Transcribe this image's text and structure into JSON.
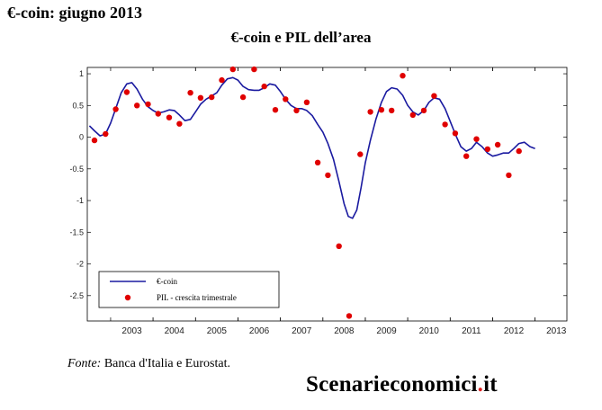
{
  "header": {
    "title": "€-coin: giugno 2013"
  },
  "chart_data": {
    "type": "line",
    "title": "€-coin e PIL dell’area",
    "xlabel": "",
    "ylabel": "",
    "ylim": [
      -2.9,
      1.1
    ],
    "xlim": [
      2002.45,
      2013.75
    ],
    "grid": false,
    "legend": {
      "placement": "bottom-left"
    },
    "x_ticks": [
      "2003",
      "2004",
      "2005",
      "2006",
      "2007",
      "2008",
      "2009",
      "2010",
      "2011",
      "2012",
      "2013"
    ],
    "y_ticks": [
      "1",
      "0.5",
      "0",
      "-0.5",
      "-1",
      "-1.5",
      "-2",
      "-2.5"
    ],
    "series": [
      {
        "name": "€-coin",
        "style": "line",
        "color": "#1a1aa0",
        "points": [
          [
            2002.5,
            0.18
          ],
          [
            2002.62,
            0.1
          ],
          [
            2002.75,
            0.02
          ],
          [
            2002.88,
            0.05
          ],
          [
            2003.0,
            0.22
          ],
          [
            2003.12,
            0.45
          ],
          [
            2003.25,
            0.7
          ],
          [
            2003.38,
            0.84
          ],
          [
            2003.5,
            0.86
          ],
          [
            2003.62,
            0.76
          ],
          [
            2003.75,
            0.6
          ],
          [
            2003.88,
            0.48
          ],
          [
            2004.0,
            0.42
          ],
          [
            2004.12,
            0.38
          ],
          [
            2004.25,
            0.4
          ],
          [
            2004.38,
            0.43
          ],
          [
            2004.5,
            0.42
          ],
          [
            2004.62,
            0.35
          ],
          [
            2004.75,
            0.26
          ],
          [
            2004.88,
            0.28
          ],
          [
            2005.0,
            0.4
          ],
          [
            2005.12,
            0.52
          ],
          [
            2005.25,
            0.6
          ],
          [
            2005.38,
            0.65
          ],
          [
            2005.5,
            0.7
          ],
          [
            2005.62,
            0.82
          ],
          [
            2005.75,
            0.92
          ],
          [
            2005.88,
            0.94
          ],
          [
            2006.0,
            0.9
          ],
          [
            2006.12,
            0.8
          ],
          [
            2006.25,
            0.75
          ],
          [
            2006.38,
            0.74
          ],
          [
            2006.5,
            0.74
          ],
          [
            2006.62,
            0.78
          ],
          [
            2006.75,
            0.84
          ],
          [
            2006.88,
            0.82
          ],
          [
            2007.0,
            0.72
          ],
          [
            2007.12,
            0.6
          ],
          [
            2007.25,
            0.5
          ],
          [
            2007.38,
            0.45
          ],
          [
            2007.5,
            0.45
          ],
          [
            2007.62,
            0.42
          ],
          [
            2007.75,
            0.34
          ],
          [
            2007.88,
            0.2
          ],
          [
            2008.0,
            0.08
          ],
          [
            2008.12,
            -0.1
          ],
          [
            2008.25,
            -0.35
          ],
          [
            2008.38,
            -0.7
          ],
          [
            2008.5,
            -1.05
          ],
          [
            2008.6,
            -1.25
          ],
          [
            2008.7,
            -1.28
          ],
          [
            2008.8,
            -1.15
          ],
          [
            2008.9,
            -0.8
          ],
          [
            2009.0,
            -0.4
          ],
          [
            2009.12,
            -0.05
          ],
          [
            2009.25,
            0.28
          ],
          [
            2009.38,
            0.55
          ],
          [
            2009.5,
            0.72
          ],
          [
            2009.62,
            0.78
          ],
          [
            2009.75,
            0.76
          ],
          [
            2009.88,
            0.66
          ],
          [
            2010.0,
            0.5
          ],
          [
            2010.12,
            0.4
          ],
          [
            2010.25,
            0.35
          ],
          [
            2010.38,
            0.42
          ],
          [
            2010.5,
            0.55
          ],
          [
            2010.62,
            0.62
          ],
          [
            2010.75,
            0.6
          ],
          [
            2010.88,
            0.45
          ],
          [
            2011.0,
            0.25
          ],
          [
            2011.12,
            0.05
          ],
          [
            2011.25,
            -0.15
          ],
          [
            2011.38,
            -0.22
          ],
          [
            2011.5,
            -0.18
          ],
          [
            2011.62,
            -0.08
          ],
          [
            2011.75,
            -0.15
          ],
          [
            2011.88,
            -0.25
          ],
          [
            2012.0,
            -0.3
          ],
          [
            2012.12,
            -0.28
          ],
          [
            2012.25,
            -0.25
          ],
          [
            2012.38,
            -0.25
          ],
          [
            2012.5,
            -0.18
          ],
          [
            2012.62,
            -0.1
          ],
          [
            2012.75,
            -0.08
          ],
          [
            2012.88,
            -0.15
          ],
          [
            2013.0,
            -0.18
          ]
        ]
      },
      {
        "name": "PIL - crescita trimestrale",
        "style": "marker",
        "color": "#e00000",
        "points": [
          [
            2002.62,
            -0.05
          ],
          [
            2002.88,
            0.05
          ],
          [
            2003.12,
            0.44
          ],
          [
            2003.38,
            0.71
          ],
          [
            2003.62,
            0.5
          ],
          [
            2003.88,
            0.52
          ],
          [
            2004.12,
            0.37
          ],
          [
            2004.38,
            0.31
          ],
          [
            2004.62,
            0.21
          ],
          [
            2004.88,
            0.7
          ],
          [
            2005.12,
            0.62
          ],
          [
            2005.38,
            0.63
          ],
          [
            2005.62,
            0.9
          ],
          [
            2005.88,
            1.07
          ],
          [
            2006.12,
            0.63
          ],
          [
            2006.38,
            1.07
          ],
          [
            2006.62,
            0.8
          ],
          [
            2006.88,
            0.43
          ],
          [
            2007.12,
            0.6
          ],
          [
            2007.38,
            0.42
          ],
          [
            2007.62,
            0.55
          ],
          [
            2007.88,
            -0.4
          ],
          [
            2008.12,
            -0.6
          ],
          [
            2008.38,
            -1.72
          ],
          [
            2008.62,
            -2.82
          ],
          [
            2008.88,
            -0.27
          ],
          [
            2009.12,
            0.4
          ],
          [
            2009.38,
            0.43
          ],
          [
            2009.62,
            0.42
          ],
          [
            2009.88,
            0.97
          ],
          [
            2010.12,
            0.35
          ],
          [
            2010.38,
            0.42
          ],
          [
            2010.62,
            0.65
          ],
          [
            2010.88,
            0.2
          ],
          [
            2011.12,
            0.06
          ],
          [
            2011.38,
            -0.3
          ],
          [
            2011.62,
            -0.03
          ],
          [
            2011.88,
            -0.19
          ],
          [
            2012.12,
            -0.12
          ],
          [
            2012.38,
            -0.6
          ],
          [
            2012.62,
            -0.22
          ]
        ]
      }
    ]
  },
  "footer": {
    "source_label": "Fonte:",
    "source_text": " Banca d'Italia e Eurostat.",
    "brand_main": "Scenarieconomici",
    "brand_dot": ".",
    "brand_tld": "it"
  }
}
